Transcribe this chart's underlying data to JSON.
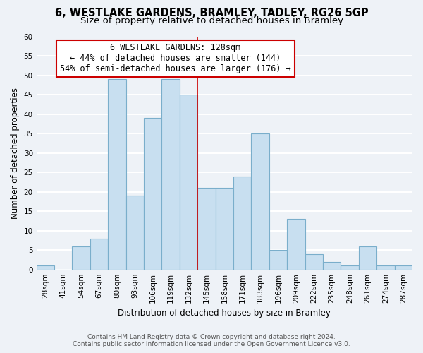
{
  "title": "6, WESTLAKE GARDENS, BRAMLEY, TADLEY, RG26 5GP",
  "subtitle": "Size of property relative to detached houses in Bramley",
  "xlabel": "Distribution of detached houses by size in Bramley",
  "ylabel": "Number of detached properties",
  "bin_labels": [
    "28sqm",
    "41sqm",
    "54sqm",
    "67sqm",
    "80sqm",
    "93sqm",
    "106sqm",
    "119sqm",
    "132sqm",
    "145sqm",
    "158sqm",
    "171sqm",
    "183sqm",
    "196sqm",
    "209sqm",
    "222sqm",
    "235sqm",
    "248sqm",
    "261sqm",
    "274sqm",
    "287sqm"
  ],
  "bar_heights": [
    1,
    0,
    6,
    8,
    49,
    19,
    39,
    49,
    45,
    21,
    21,
    24,
    35,
    5,
    13,
    4,
    2,
    1,
    6,
    1,
    1
  ],
  "bar_color": "#c8dff0",
  "bar_edge_color": "#7aaecb",
  "highlight_line_color": "#cc0000",
  "highlight_bar_index": 8,
  "annotation_box_color": "#ffffff",
  "annotation_border_color": "#cc0000",
  "annotation_text_line1": "6 WESTLAKE GARDENS: 128sqm",
  "annotation_text_line2": "← 44% of detached houses are smaller (144)",
  "annotation_text_line3": "54% of semi-detached houses are larger (176) →",
  "ylim": [
    0,
    60
  ],
  "yticks": [
    0,
    5,
    10,
    15,
    20,
    25,
    30,
    35,
    40,
    45,
    50,
    55,
    60
  ],
  "footer_line1": "Contains HM Land Registry data © Crown copyright and database right 2024.",
  "footer_line2": "Contains public sector information licensed under the Open Government Licence v3.0.",
  "background_color": "#eef2f7",
  "grid_color": "#ffffff",
  "title_fontsize": 10.5,
  "subtitle_fontsize": 9.5,
  "annotation_fontsize": 8.5,
  "axis_label_fontsize": 8.5,
  "tick_fontsize": 7.5,
  "footer_fontsize": 6.5
}
